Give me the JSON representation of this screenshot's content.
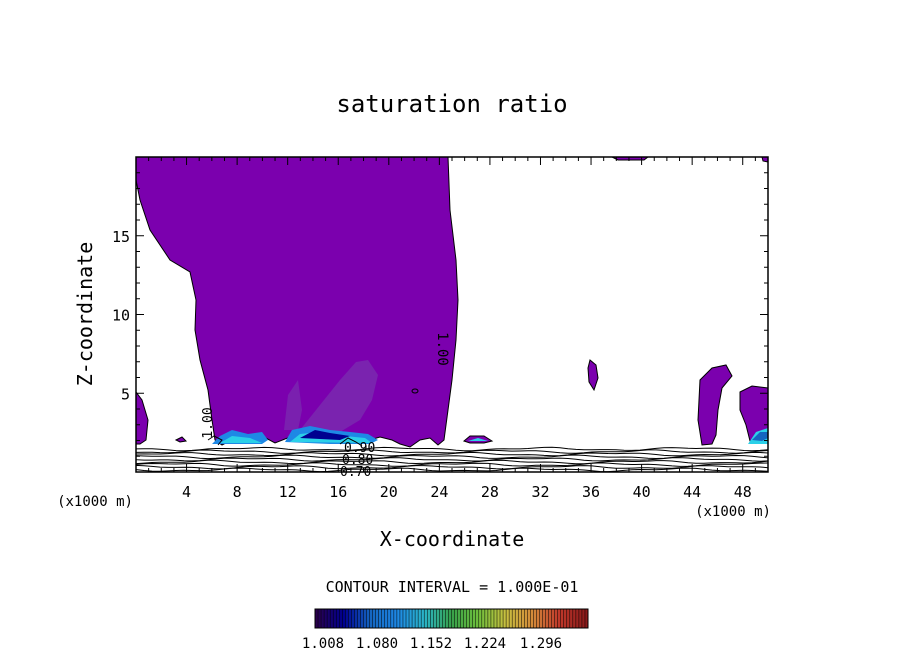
{
  "chart_data": {
    "type": "contour",
    "title": "saturation ratio",
    "xlabel": "X-coordinate",
    "ylabel": "Z-coordinate",
    "x_unit": "(x1000 m)",
    "y_unit": "(x1000 m)",
    "xlim": [
      0,
      50
    ],
    "ylim": [
      0,
      20
    ],
    "xticks": [
      4,
      8,
      12,
      16,
      20,
      24,
      28,
      32,
      36,
      40,
      44,
      48
    ],
    "yticks": [
      5,
      10,
      15
    ],
    "contour_interval_text": "CONTOUR INTERVAL = 1.000E-01",
    "colorbar": {
      "ticks": [
        "1.008",
        "1.080",
        "1.152",
        "1.224",
        "1.296"
      ],
      "colors": [
        "#2a004e",
        "#000090",
        "#1565c0",
        "#1e88e5",
        "#2bb5c8",
        "#37a04a",
        "#6fbf3c",
        "#c8c040",
        "#d48a3a",
        "#c0392b",
        "#8b1a1a"
      ]
    },
    "contour_labels": [
      "1.00",
      "1.00",
      "0.90",
      "0.80",
      "0.70"
    ],
    "fill_color": "#7b00ae",
    "line_color": "#000000"
  }
}
